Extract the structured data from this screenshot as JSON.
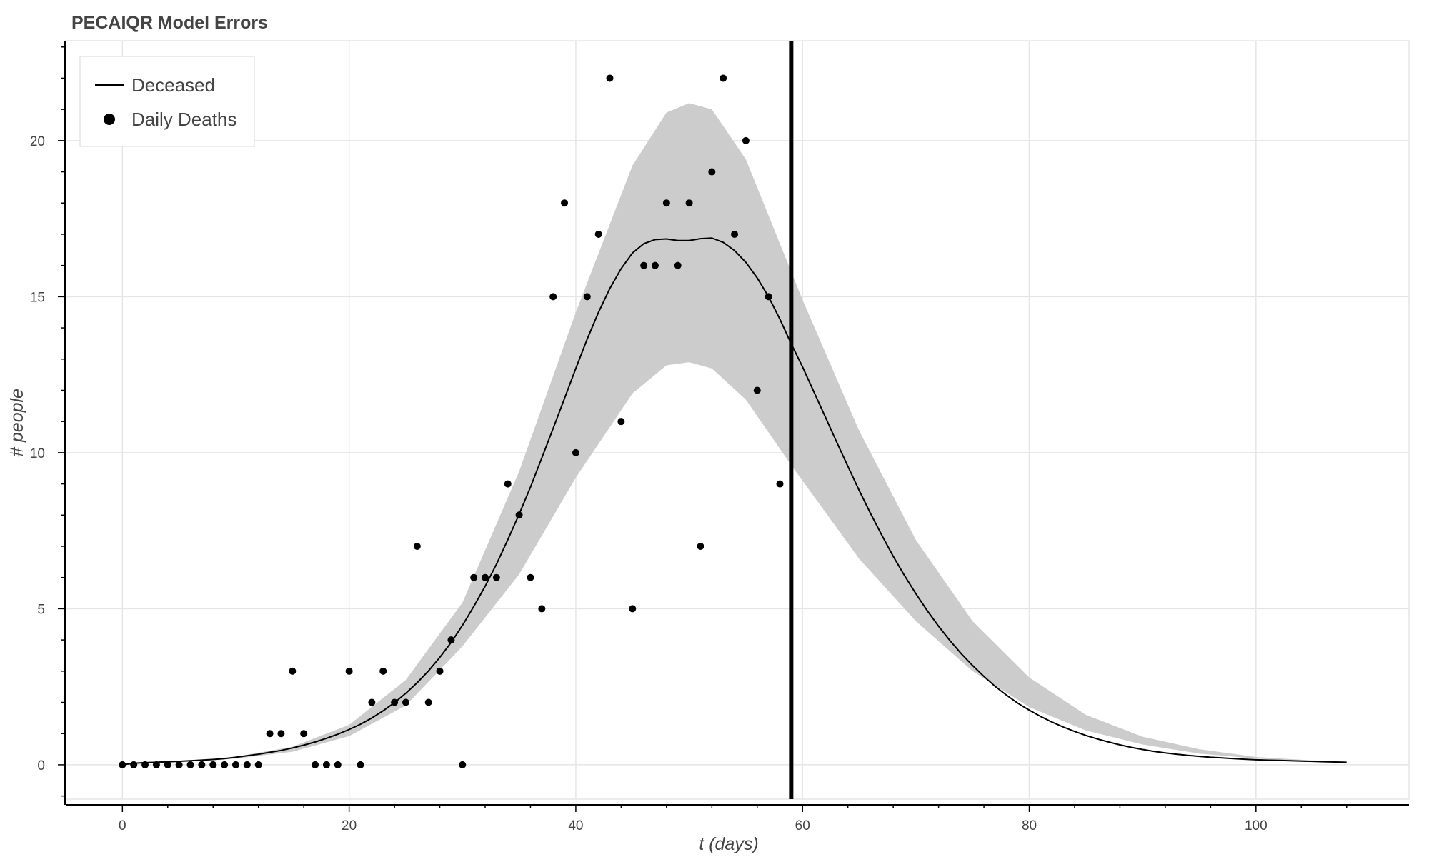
{
  "chart_data": {
    "type": "line",
    "title": "PECAIQR Model Errors",
    "xlabel": "t (days)",
    "ylabel": "# people",
    "xlim": [
      -5,
      113.5
    ],
    "ylim": [
      -1.1,
      23.2
    ],
    "x_ticks": [
      0,
      20,
      40,
      60,
      80,
      100
    ],
    "x_tick_labels": [
      "0",
      "20",
      "40",
      "60",
      "80",
      "100"
    ],
    "y_ticks": [
      0,
      5,
      10,
      15,
      20
    ],
    "y_tick_labels": [
      "0",
      "5",
      "10",
      "15",
      "20"
    ],
    "grid": true,
    "legend_position": "top-left",
    "vertical_marker_x": 59,
    "series": [
      {
        "name": "Deceased",
        "kind": "line",
        "color": "#000000",
        "x": [
          0,
          1,
          2,
          3,
          4,
          5,
          6,
          7,
          8,
          9,
          10,
          11,
          12,
          13,
          14,
          15,
          16,
          17,
          18,
          19,
          20,
          21,
          22,
          23,
          24,
          25,
          26,
          27,
          28,
          29,
          30,
          31,
          32,
          33,
          34,
          35,
          36,
          37,
          38,
          39,
          40,
          41,
          42,
          43,
          44,
          45,
          46,
          47,
          48,
          49,
          50,
          51,
          52,
          53,
          54,
          55,
          56,
          57,
          58,
          59,
          60,
          61,
          62,
          63,
          64,
          65,
          66,
          67,
          68,
          69,
          70,
          71,
          72,
          73,
          74,
          75,
          76,
          77,
          78,
          79,
          80,
          81,
          82,
          83,
          84,
          85,
          86,
          87,
          88,
          89,
          90,
          91,
          92,
          93,
          94,
          95,
          96,
          97,
          98,
          99,
          100,
          101,
          102,
          103,
          104,
          105,
          106,
          107,
          108
        ],
        "values": [
          0,
          0.05,
          0.07,
          0.08,
          0.1,
          0.11,
          0.13,
          0.15,
          0.17,
          0.2,
          0.24,
          0.29,
          0.34,
          0.4,
          0.46,
          0.54,
          0.63,
          0.73,
          0.85,
          0.98,
          1.13,
          1.3,
          1.5,
          1.73,
          1.99,
          2.29,
          2.63,
          3.01,
          3.44,
          3.92,
          4.47,
          5.07,
          5.72,
          6.43,
          7.21,
          8.03,
          8.9,
          9.83,
          10.78,
          11.74,
          12.7,
          13.64,
          14.5,
          15.26,
          15.9,
          16.4,
          16.7,
          16.83,
          16.85,
          16.8,
          16.8,
          16.86,
          16.88,
          16.74,
          16.48,
          16.1,
          15.6,
          15.0,
          14.28,
          13.49,
          12.75,
          11.95,
          11.15,
          10.35,
          9.56,
          8.79,
          8.05,
          7.35,
          6.68,
          6.06,
          5.48,
          4.94,
          4.44,
          3.98,
          3.56,
          3.18,
          2.83,
          2.51,
          2.23,
          1.97,
          1.75,
          1.55,
          1.37,
          1.21,
          1.07,
          0.94,
          0.83,
          0.73,
          0.64,
          0.56,
          0.49,
          0.43,
          0.38,
          0.34,
          0.3,
          0.27,
          0.24,
          0.22,
          0.2,
          0.18,
          0.16,
          0.15,
          0.14,
          0.13,
          0.12,
          0.11,
          0.1,
          0.09,
          0.08
        ]
      },
      {
        "name": "Daily Deaths",
        "kind": "scatter",
        "color": "#000000",
        "x": [
          0,
          1,
          2,
          3,
          4,
          5,
          6,
          7,
          8,
          9,
          10,
          11,
          12,
          13,
          14,
          15,
          16,
          17,
          18,
          19,
          20,
          21,
          22,
          23,
          24,
          25,
          26,
          27,
          28,
          29,
          30,
          31,
          32,
          33,
          34,
          35,
          36,
          37,
          38,
          39,
          40,
          41,
          42,
          43,
          44,
          45,
          46,
          47,
          48,
          49,
          50,
          51,
          52,
          53,
          54,
          55,
          56,
          57,
          58
        ],
        "values": [
          0,
          0,
          0,
          0,
          0,
          0,
          0,
          0,
          0,
          0,
          0,
          0,
          0,
          1,
          1,
          3,
          1,
          0,
          0,
          0,
          3,
          0,
          2,
          3,
          2,
          2,
          7,
          2,
          3,
          4,
          0,
          6,
          6,
          6,
          9,
          8,
          6,
          5,
          15,
          18,
          10,
          15,
          17,
          22,
          11,
          5,
          16,
          16,
          18,
          16,
          18,
          7,
          19,
          22,
          17,
          20,
          12,
          15,
          9
        ]
      }
    ],
    "band_x": [
      0,
      5,
      10,
      15,
      20,
      25,
      30,
      35,
      40,
      45,
      48,
      50,
      52,
      55,
      59,
      60,
      65,
      70,
      75,
      80,
      85,
      90,
      95,
      100,
      105,
      108
    ],
    "band_upper": [
      0,
      0.12,
      0.26,
      0.58,
      1.28,
      2.72,
      5.2,
      9.4,
      14.5,
      19.2,
      20.9,
      21.2,
      21.0,
      19.4,
      15.8,
      14.9,
      10.7,
      7.2,
      4.6,
      2.8,
      1.6,
      0.9,
      0.5,
      0.25,
      0.14,
      0.1
    ],
    "band_lower": [
      0,
      0.1,
      0.2,
      0.42,
      0.92,
      1.9,
      3.8,
      6.1,
      9.2,
      11.9,
      12.8,
      12.9,
      12.7,
      11.7,
      9.6,
      9.1,
      6.6,
      4.6,
      3.0,
      1.85,
      1.1,
      0.65,
      0.36,
      0.2,
      0.11,
      0.08
    ],
    "band_color": "#cccccc"
  }
}
